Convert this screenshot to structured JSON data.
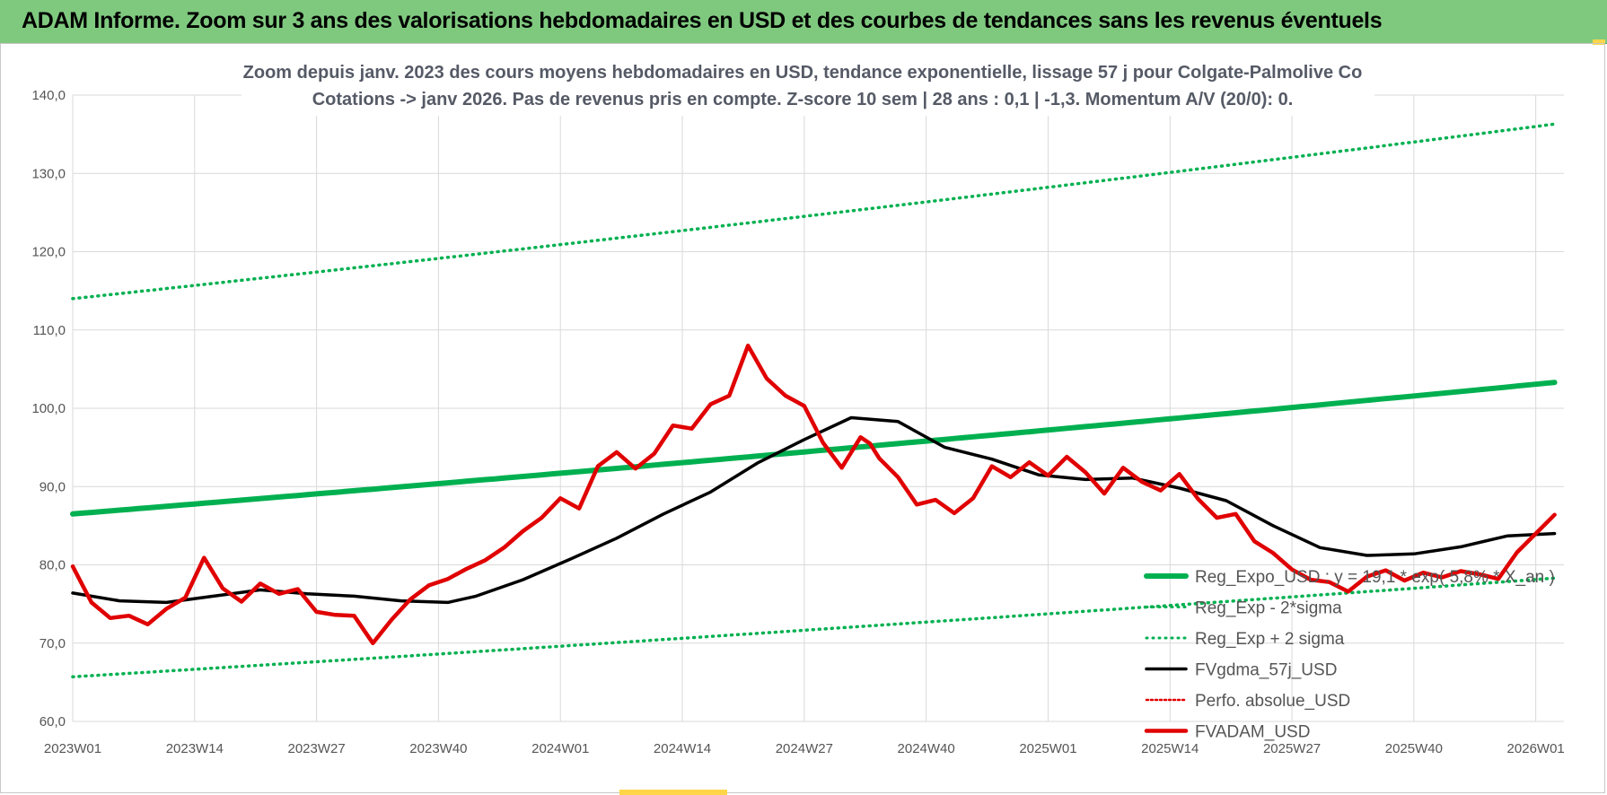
{
  "banner": {
    "title": "ADAM Informe. Zoom sur 3 ans des valorisations hebdomadaires en USD et des courbes de tendances sans les revenus éventuels"
  },
  "colors": {
    "banner_bg": "#7fc97f",
    "trend": "#00b050",
    "price": "#e00000",
    "mavg": "#000000",
    "grid": "#d9d9d9"
  },
  "chart_data": {
    "type": "line",
    "title_line1": "Zoom depuis janv. 2023 des cours moyens hebdomadaires en USD, tendance exponentielle, lissage 57 j pour Colgate-Palmolive Co",
    "title_line2": "Cotations -> janv 2026. Pas de revenus pris en compte. Z-score 10 sem | 28 ans : 0,1 | -1,3. Momentum A/V (20/0): 0.",
    "ylim": [
      60,
      140
    ],
    "y_ticks": [
      "60,0",
      "70,0",
      "80,0",
      "90,0",
      "100,0",
      "110,0",
      "120,0",
      "130,0",
      "140,0"
    ],
    "x_ticks": [
      "2023W01",
      "2023W14",
      "2023W27",
      "2023W40",
      "2024W01",
      "2024W14",
      "2024W27",
      "2024W40",
      "2025W01",
      "2025W14",
      "2025W27",
      "2025W40",
      "2026W01"
    ],
    "weeks_total": 159,
    "series": [
      {
        "name": "Reg_Expo_USD : y = 19,1 * exp( 5,8% *  X_an )",
        "style": "trend",
        "x": [
          0,
          158
        ],
        "values": [
          86.5,
          103.3
        ]
      },
      {
        "name": "Reg_Exp - 2*sigma",
        "style": "band",
        "x": [
          0,
          158
        ],
        "values": [
          65.7,
          78.3
        ]
      },
      {
        "name": "Reg_Exp + 2 sigma",
        "style": "band",
        "x": [
          0,
          158
        ],
        "values": [
          114.0,
          136.3
        ]
      },
      {
        "name": "FVgdma_57j_USD",
        "style": "mavg",
        "x": [
          0,
          5,
          10,
          15,
          20,
          25,
          30,
          35,
          40,
          43,
          48,
          53,
          58,
          63,
          68,
          73,
          78,
          83,
          88,
          93,
          98,
          103,
          108,
          113,
          118,
          123,
          128,
          133,
          138,
          143,
          148,
          153,
          158
        ],
        "values": [
          76.4,
          75.4,
          75.2,
          76.0,
          76.8,
          76.3,
          76.0,
          75.4,
          75.2,
          76.0,
          78.1,
          80.7,
          83.4,
          86.5,
          89.3,
          93.0,
          96.0,
          98.8,
          98.3,
          95.0,
          93.5,
          91.5,
          90.9,
          91.1,
          89.8,
          88.2,
          85.0,
          82.2,
          81.2,
          81.4,
          82.3,
          83.7,
          84.0
        ]
      },
      {
        "name": "Perfo. absolue_USD",
        "style": "dotted-red",
        "x": [],
        "values": []
      },
      {
        "name": "FVADAM_USD",
        "style": "price",
        "x": [
          0,
          2,
          4,
          6,
          8,
          10,
          12,
          14,
          16,
          18,
          20,
          22,
          24,
          26,
          28,
          30,
          32,
          34,
          36,
          38,
          40,
          42,
          44,
          46,
          48,
          50,
          52,
          54,
          56,
          58,
          60,
          62,
          64,
          66,
          68,
          70,
          72,
          74,
          76,
          78,
          80,
          82,
          84,
          85,
          86,
          88,
          90,
          92,
          94,
          96,
          98,
          100,
          102,
          104,
          106,
          108,
          110,
          112,
          114,
          116,
          118,
          120,
          122,
          124,
          126,
          128,
          130,
          132,
          134,
          136,
          138,
          140,
          142,
          144,
          146,
          148,
          150,
          152,
          154,
          156,
          158
        ],
        "values": [
          79.8,
          75.2,
          73.2,
          73.5,
          72.4,
          74.4,
          75.8,
          80.9,
          77.0,
          75.3,
          77.6,
          76.3,
          76.9,
          74.0,
          73.6,
          73.5,
          70.0,
          73.0,
          75.6,
          77.4,
          78.2,
          79.5,
          80.6,
          82.2,
          84.3,
          86.0,
          88.5,
          87.2,
          92.6,
          94.4,
          92.3,
          94.2,
          97.8,
          97.4,
          100.5,
          101.6,
          108.0,
          103.8,
          101.6,
          100.3,
          95.6,
          92.4,
          96.3,
          95.5,
          93.6,
          91.2,
          87.7,
          88.3,
          86.6,
          88.5,
          92.6,
          91.2,
          93.1,
          91.4,
          93.8,
          91.8,
          89.1,
          92.4,
          90.6,
          89.5,
          91.6,
          88.4,
          86.0,
          86.5,
          83.0,
          81.5,
          79.4,
          78.1,
          77.8,
          76.6,
          78.5,
          79.3,
          78.0,
          79.0,
          78.4,
          79.2,
          78.8,
          78.2,
          81.6,
          84.0,
          86.4
        ]
      }
    ]
  }
}
